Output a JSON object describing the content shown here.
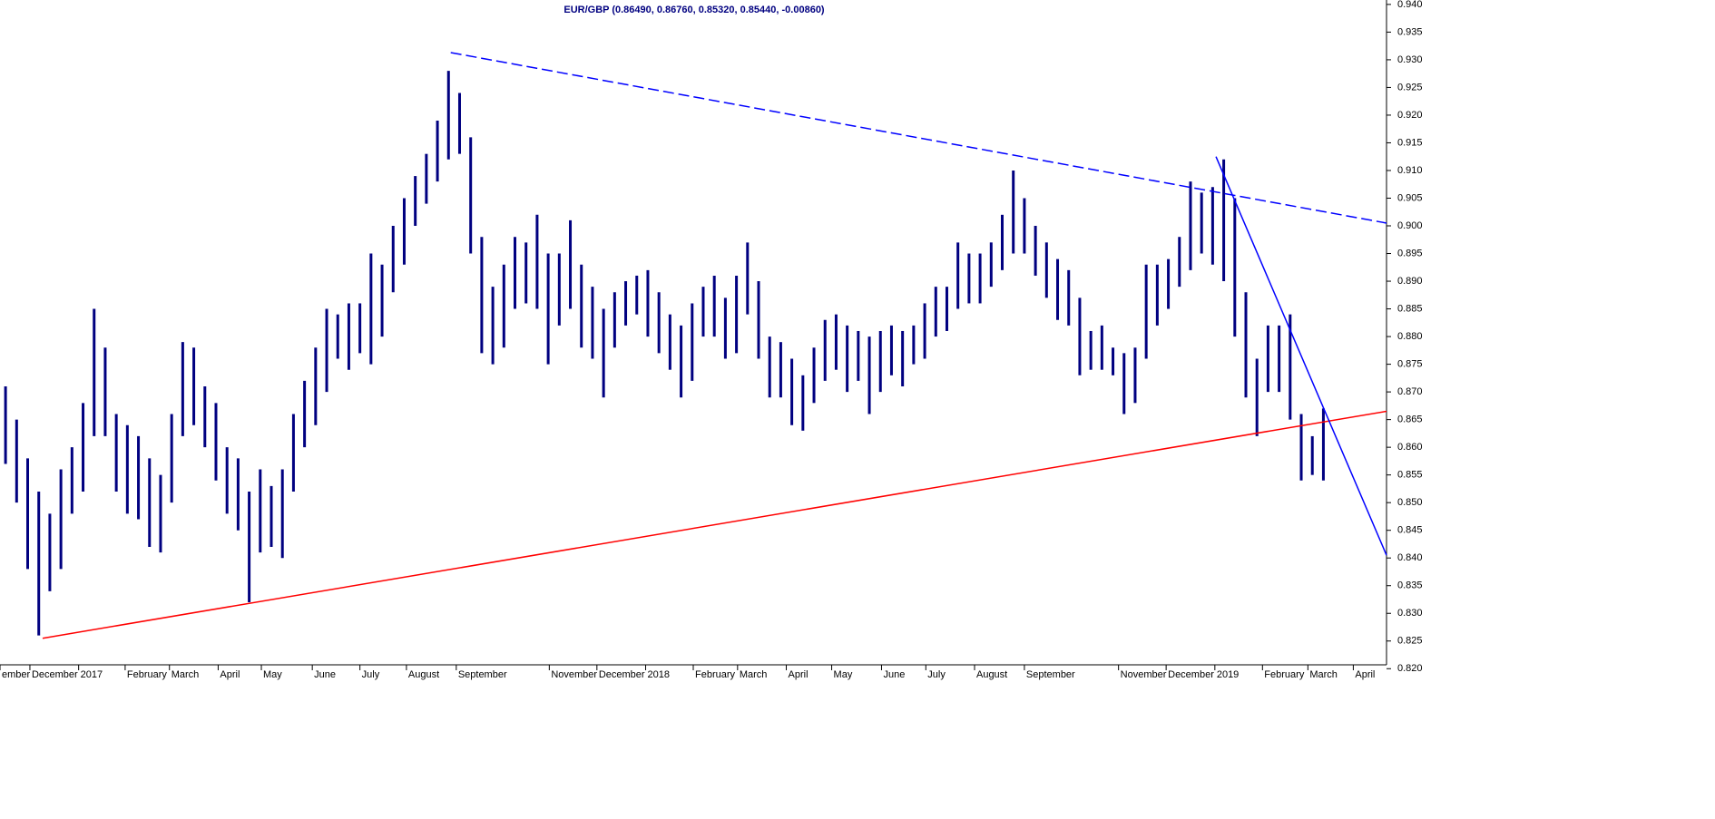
{
  "chart_data": {
    "type": "hilo",
    "title": "EUR/GBP (0.86490, 0.86760, 0.85320, 0.85440, -0.00860)",
    "xlim": [
      0,
      125.2
    ],
    "ylim": [
      0.8207,
      0.9408
    ],
    "xticks": [
      {
        "value": 0,
        "label": "ember"
      },
      {
        "value": 2.7,
        "label": "December"
      },
      {
        "value": 7.1,
        "label": "2017"
      },
      {
        "value": 11.3,
        "label": "February"
      },
      {
        "value": 15.3,
        "label": "March"
      },
      {
        "value": 19.7,
        "label": "April"
      },
      {
        "value": 23.6,
        "label": "May"
      },
      {
        "value": 28.2,
        "label": "June"
      },
      {
        "value": 32.5,
        "label": "July"
      },
      {
        "value": 36.7,
        "label": "August"
      },
      {
        "value": 41.2,
        "label": "September"
      },
      {
        "value": 49.6,
        "label": "November"
      },
      {
        "value": 53.9,
        "label": "December"
      },
      {
        "value": 58.3,
        "label": "2018"
      },
      {
        "value": 62.6,
        "label": "February"
      },
      {
        "value": 66.6,
        "label": "March"
      },
      {
        "value": 71.0,
        "label": "April"
      },
      {
        "value": 75.1,
        "label": "May"
      },
      {
        "value": 79.6,
        "label": "June"
      },
      {
        "value": 83.6,
        "label": "July"
      },
      {
        "value": 88.0,
        "label": "August"
      },
      {
        "value": 92.5,
        "label": "September"
      },
      {
        "value": 101.0,
        "label": "November"
      },
      {
        "value": 105.3,
        "label": "December"
      },
      {
        "value": 109.7,
        "label": "2019"
      },
      {
        "value": 114.0,
        "label": "February"
      },
      {
        "value": 118.1,
        "label": "March"
      },
      {
        "value": 122.2,
        "label": "April"
      }
    ],
    "yticks": [
      {
        "value": 0.82,
        "label": "0.820"
      },
      {
        "value": 0.825,
        "label": "0.825"
      },
      {
        "value": 0.83,
        "label": "0.830"
      },
      {
        "value": 0.835,
        "label": "0.835"
      },
      {
        "value": 0.84,
        "label": "0.840"
      },
      {
        "value": 0.845,
        "label": "0.845"
      },
      {
        "value": 0.85,
        "label": "0.850"
      },
      {
        "value": 0.855,
        "label": "0.855"
      },
      {
        "value": 0.86,
        "label": "0.860"
      },
      {
        "value": 0.865,
        "label": "0.865"
      },
      {
        "value": 0.87,
        "label": "0.870"
      },
      {
        "value": 0.875,
        "label": "0.875"
      },
      {
        "value": 0.88,
        "label": "0.880"
      },
      {
        "value": 0.885,
        "label": "0.885"
      },
      {
        "value": 0.89,
        "label": "0.890"
      },
      {
        "value": 0.895,
        "label": "0.895"
      },
      {
        "value": 0.9,
        "label": "0.900"
      },
      {
        "value": 0.905,
        "label": "0.905"
      },
      {
        "value": 0.91,
        "label": "0.910"
      },
      {
        "value": 0.915,
        "label": "0.915"
      },
      {
        "value": 0.92,
        "label": "0.920"
      },
      {
        "value": 0.925,
        "label": "0.925"
      },
      {
        "value": 0.93,
        "label": "0.930"
      },
      {
        "value": 0.935,
        "label": "0.935"
      },
      {
        "value": 0.94,
        "label": "0.940"
      }
    ],
    "x": [
      0.5,
      1.5,
      2.5,
      3.5,
      4.5,
      5.5,
      6.5,
      7.5,
      8.5,
      9.5,
      10.5,
      11.5,
      12.5,
      13.5,
      14.5,
      15.5,
      16.5,
      17.5,
      18.5,
      19.5,
      20.5,
      21.5,
      22.5,
      23.5,
      24.5,
      25.5,
      26.5,
      27.5,
      28.5,
      29.5,
      30.5,
      31.5,
      32.5,
      33.5,
      34.5,
      35.5,
      36.5,
      37.5,
      38.5,
      39.5,
      40.5,
      41.5,
      42.5,
      43.5,
      44.5,
      45.5,
      46.5,
      47.5,
      48.5,
      49.5,
      50.5,
      51.5,
      52.5,
      53.5,
      54.5,
      55.5,
      56.5,
      57.5,
      58.5,
      59.5,
      60.5,
      61.5,
      62.5,
      63.5,
      64.5,
      65.5,
      66.5,
      67.5,
      68.5,
      69.5,
      70.5,
      71.5,
      72.5,
      73.5,
      74.5,
      75.5,
      76.5,
      77.5,
      78.5,
      79.5,
      80.5,
      81.5,
      82.5,
      83.5,
      84.5,
      85.5,
      86.5,
      87.5,
      88.5,
      89.5,
      90.5,
      91.5,
      92.5,
      93.5,
      94.5,
      95.5,
      96.5,
      97.5,
      98.5,
      99.5,
      100.5,
      101.5,
      102.5,
      103.5,
      104.5,
      105.5,
      106.5,
      107.5,
      108.5,
      109.5,
      110.5,
      111.5,
      112.5,
      113.5,
      114.5,
      115.5,
      116.5,
      117.5,
      118.5,
      119.5
    ],
    "series": [
      {
        "color": "#000080",
        "high": [
          0.871,
          0.865,
          0.858,
          0.852,
          0.848,
          0.856,
          0.86,
          0.868,
          0.885,
          0.878,
          0.866,
          0.864,
          0.862,
          0.858,
          0.855,
          0.866,
          0.879,
          0.878,
          0.871,
          0.868,
          0.86,
          0.858,
          0.852,
          0.856,
          0.853,
          0.856,
          0.866,
          0.872,
          0.878,
          0.885,
          0.884,
          0.886,
          0.886,
          0.895,
          0.893,
          0.9,
          0.905,
          0.909,
          0.913,
          0.919,
          0.928,
          0.924,
          0.916,
          0.898,
          0.889,
          0.893,
          0.898,
          0.897,
          0.902,
          0.895,
          0.895,
          0.901,
          0.893,
          0.889,
          0.885,
          0.888,
          0.89,
          0.891,
          0.892,
          0.888,
          0.884,
          0.882,
          0.886,
          0.889,
          0.891,
          0.887,
          0.891,
          0.897,
          0.89,
          0.88,
          0.879,
          0.876,
          0.873,
          0.878,
          0.883,
          0.884,
          0.882,
          0.881,
          0.88,
          0.881,
          0.882,
          0.881,
          0.882,
          0.886,
          0.889,
          0.889,
          0.897,
          0.895,
          0.895,
          0.897,
          0.902,
          0.91,
          0.905,
          0.9,
          0.897,
          0.894,
          0.892,
          0.887,
          0.881,
          0.882,
          0.878,
          0.877,
          0.878,
          0.893,
          0.893,
          0.894,
          0.898,
          0.908,
          0.906,
          0.907,
          0.912,
          0.905,
          0.888,
          0.876,
          0.882,
          0.882,
          0.884,
          0.866,
          0.862,
          0.867
        ],
        "low": [
          0.857,
          0.85,
          0.838,
          0.826,
          0.834,
          0.838,
          0.848,
          0.852,
          0.862,
          0.862,
          0.852,
          0.848,
          0.847,
          0.842,
          0.841,
          0.85,
          0.862,
          0.864,
          0.86,
          0.854,
          0.848,
          0.845,
          0.832,
          0.841,
          0.842,
          0.84,
          0.852,
          0.86,
          0.864,
          0.87,
          0.876,
          0.874,
          0.877,
          0.875,
          0.88,
          0.888,
          0.893,
          0.9,
          0.904,
          0.908,
          0.912,
          0.913,
          0.895,
          0.877,
          0.875,
          0.878,
          0.885,
          0.886,
          0.885,
          0.875,
          0.882,
          0.885,
          0.878,
          0.876,
          0.869,
          0.878,
          0.882,
          0.884,
          0.88,
          0.877,
          0.874,
          0.869,
          0.872,
          0.88,
          0.88,
          0.876,
          0.877,
          0.884,
          0.876,
          0.869,
          0.869,
          0.864,
          0.863,
          0.868,
          0.872,
          0.874,
          0.87,
          0.872,
          0.866,
          0.87,
          0.873,
          0.871,
          0.875,
          0.876,
          0.88,
          0.881,
          0.885,
          0.886,
          0.886,
          0.889,
          0.892,
          0.895,
          0.895,
          0.891,
          0.887,
          0.883,
          0.882,
          0.873,
          0.874,
          0.874,
          0.873,
          0.866,
          0.868,
          0.876,
          0.882,
          0.885,
          0.889,
          0.892,
          0.895,
          0.893,
          0.89,
          0.88,
          0.869,
          0.862,
          0.87,
          0.87,
          0.865,
          0.854,
          0.855,
          0.854
        ]
      }
    ],
    "trendlines": [
      {
        "x": [
          3.85,
          125.2
        ],
        "y": [
          0.8255,
          0.8665
        ],
        "color": "#ff0000",
        "dash": false
      },
      {
        "x": [
          40.7,
          125.2
        ],
        "y": [
          0.9313,
          0.9005
        ],
        "color": "#0000ff",
        "dash": true
      },
      {
        "x": [
          109.8,
          125.2
        ],
        "y": [
          0.9125,
          0.8405
        ],
        "color": "#0000ff",
        "dash": false
      }
    ]
  }
}
